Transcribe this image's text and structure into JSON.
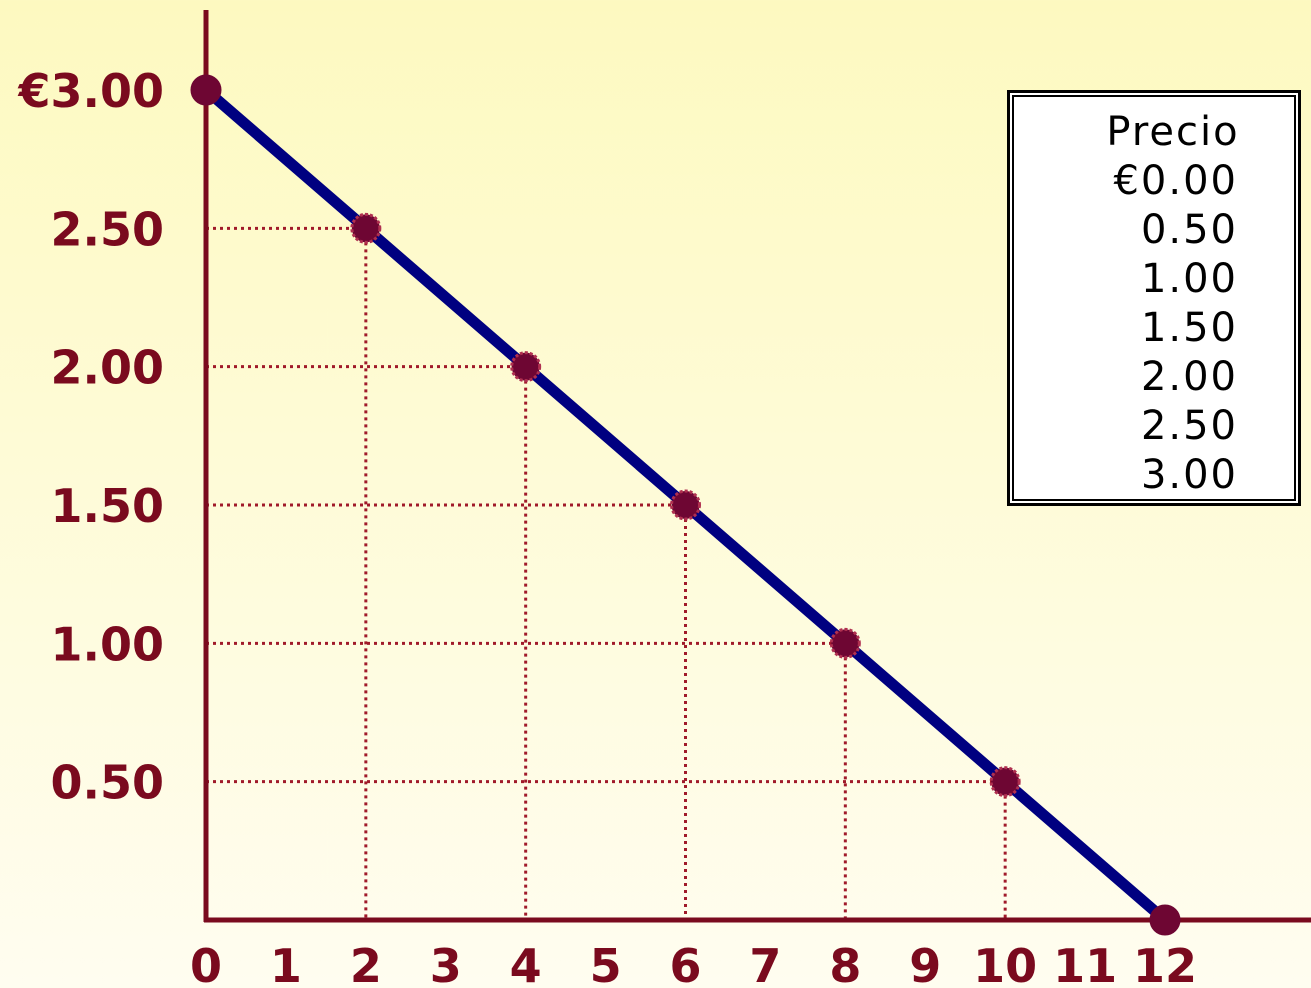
{
  "chart_data": {
    "type": "line",
    "title": "",
    "xlabel": "",
    "ylabel": "",
    "xlim": [
      0,
      12
    ],
    "ylim": [
      0,
      3
    ],
    "x_ticks": [
      "0",
      "1",
      "2",
      "3",
      "4",
      "5",
      "6",
      "7",
      "8",
      "9",
      "10",
      "11",
      "12"
    ],
    "y_ticks": [
      {
        "value": 0.5,
        "label": "0.50"
      },
      {
        "value": 1.0,
        "label": "1.00"
      },
      {
        "value": 1.5,
        "label": "1.50"
      },
      {
        "value": 2.0,
        "label": "2.00"
      },
      {
        "value": 2.5,
        "label": "2.50"
      },
      {
        "value": 3.0,
        "label": "€3.00"
      }
    ],
    "series": [
      {
        "x": [
          0,
          2,
          4,
          6,
          8,
          10,
          12
        ],
        "y": [
          3.0,
          2.5,
          2.0,
          1.5,
          1.0,
          0.5,
          0.0
        ]
      }
    ],
    "guide_points": [
      {
        "x": 2,
        "y": 2.5
      },
      {
        "x": 4,
        "y": 2.0
      },
      {
        "x": 6,
        "y": 1.5
      },
      {
        "x": 8,
        "y": 1.0
      },
      {
        "x": 10,
        "y": 0.5
      }
    ],
    "grid": false,
    "colors": {
      "line": "#000080",
      "markers": "#6e0633",
      "axes": "#7a0a1e",
      "guides": "#a01a2a",
      "labels": "#7a0a1e"
    }
  },
  "legend": {
    "title": "Precio",
    "values": [
      "€0.00",
      "0.50",
      "1.00",
      "1.50",
      "2.00",
      "2.50",
      "3.00"
    ]
  }
}
